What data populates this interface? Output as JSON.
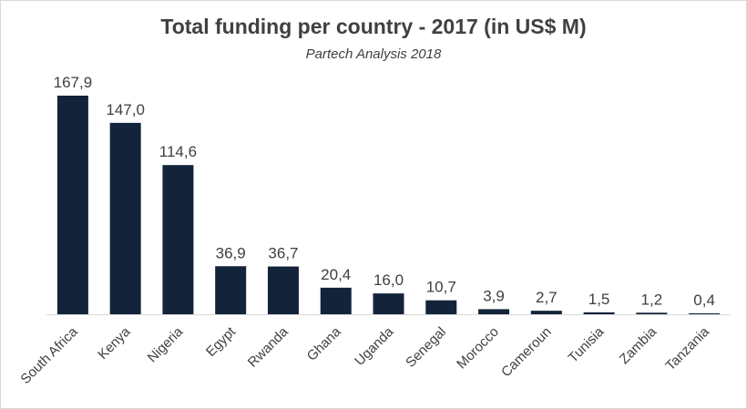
{
  "chart_data": {
    "type": "bar",
    "title": "Total funding per country - 2017 (in US$ M)",
    "subtitle": "Partech Analysis 2018",
    "categories": [
      "South Africa",
      "Kenya",
      "Nigeria",
      "Egypt",
      "Rwanda",
      "Ghana",
      "Uganda",
      "Senegal",
      "Morocco",
      "Cameroun",
      "Tunisia",
      "Zambia",
      "Tanzania"
    ],
    "values": [
      167.9,
      147.0,
      114.6,
      36.9,
      36.7,
      20.4,
      16.0,
      10.7,
      3.9,
      2.7,
      1.5,
      1.2,
      0.4
    ],
    "value_labels": [
      "167,9",
      "147,0",
      "114,6",
      "36,9",
      "36,7",
      "20,4",
      "16,0",
      "10,7",
      "3,9",
      "2,7",
      "1,5",
      "1,2",
      "0,4"
    ],
    "ylim": [
      0,
      167.9
    ],
    "grid": false,
    "bar_color": "#13243a",
    "xlabel": "",
    "ylabel": ""
  }
}
